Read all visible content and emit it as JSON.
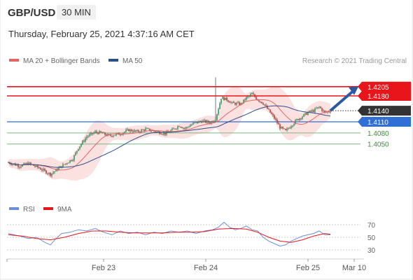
{
  "header": {
    "symbol": "GBP/USD",
    "timeframe": "30 MIN",
    "datetime": "Thursday, February 25, 2021 4:37:16 AM CET",
    "credit": "Research © 2021 Trading Central"
  },
  "colors": {
    "bull": "#2e9e5e",
    "bear": "#c0392b",
    "ma20": "#e06666",
    "band_fill": "#f9c9c9",
    "ma50": "#2c4f8c",
    "resistance": "#e8151b",
    "support": "#2f6fd6",
    "target": "#7fb77f",
    "arrow": "#2c5aa0",
    "rsi": "#6a8fd8",
    "rsi_ma": "#e8151b"
  },
  "chart_data": [
    {
      "type": "candlestick",
      "legend": [
        "MA 20 + Bollinger Bands",
        "MA 50"
      ],
      "y_range": [
        1.39,
        1.425
      ],
      "x_ticks": [
        "Feb 23",
        "Feb 24",
        "Feb 25",
        "Mar 10"
      ],
      "last_price": 1.414,
      "levels": [
        {
          "value": 1.4205,
          "label": "1.4205",
          "kind": "resistance"
        },
        {
          "value": 1.418,
          "label": "1.4180",
          "kind": "resistance"
        },
        {
          "value": 1.414,
          "label": "1.4140",
          "kind": "last"
        },
        {
          "value": 1.411,
          "label": "1.4110",
          "kind": "support"
        },
        {
          "value": 1.408,
          "label": "1.4080",
          "kind": "target"
        },
        {
          "value": 1.405,
          "label": "1.4050",
          "kind": "target"
        }
      ],
      "close_path": [
        [
          0,
          1.4
        ],
        [
          8,
          1.399
        ],
        [
          14,
          1.3998
        ],
        [
          22,
          1.3985
        ],
        [
          30,
          1.3968
        ],
        [
          38,
          1.399
        ],
        [
          46,
          1.401
        ],
        [
          50,
          1.404
        ],
        [
          56,
          1.407
        ],
        [
          62,
          1.4082
        ],
        [
          66,
          1.408
        ],
        [
          72,
          1.4072
        ],
        [
          80,
          1.4078
        ],
        [
          86,
          1.4088
        ],
        [
          92,
          1.4083
        ],
        [
          98,
          1.409
        ],
        [
          104,
          1.4085
        ],
        [
          112,
          1.4078
        ],
        [
          118,
          1.409
        ],
        [
          122,
          1.41
        ],
        [
          126,
          1.4092
        ],
        [
          132,
          1.4105
        ],
        [
          138,
          1.4112
        ],
        [
          144,
          1.4108
        ],
        [
          148,
          1.4118
        ],
        [
          152,
          1.4175
        ],
        [
          156,
          1.417
        ],
        [
          160,
          1.416
        ],
        [
          166,
          1.4158
        ],
        [
          170,
          1.4175
        ],
        [
          174,
          1.4185
        ],
        [
          178,
          1.417
        ],
        [
          182,
          1.416
        ],
        [
          186,
          1.414
        ],
        [
          190,
          1.412
        ],
        [
          194,
          1.4095
        ],
        [
          198,
          1.4085
        ],
        [
          202,
          1.41
        ],
        [
          206,
          1.4115
        ],
        [
          210,
          1.4125
        ],
        [
          214,
          1.4135
        ],
        [
          218,
          1.414
        ],
        [
          222,
          1.415
        ],
        [
          226,
          1.4135
        ],
        [
          230,
          1.414
        ]
      ]
    },
    {
      "type": "line",
      "legend": [
        "RSI",
        "9MA"
      ],
      "y_range": [
        20,
        80
      ],
      "y_ticks": [
        70,
        50,
        30
      ],
      "rsi": [
        [
          0,
          56
        ],
        [
          8,
          52
        ],
        [
          14,
          48
        ],
        [
          20,
          50
        ],
        [
          26,
          42
        ],
        [
          30,
          38
        ],
        [
          34,
          48
        ],
        [
          38,
          56
        ],
        [
          44,
          58
        ],
        [
          50,
          62
        ],
        [
          56,
          60
        ],
        [
          62,
          64
        ],
        [
          68,
          58
        ],
        [
          74,
          54
        ],
        [
          80,
          60
        ],
        [
          86,
          56
        ],
        [
          92,
          58
        ],
        [
          98,
          54
        ],
        [
          104,
          58
        ],
        [
          110,
          56
        ],
        [
          116,
          60
        ],
        [
          122,
          58
        ],
        [
          128,
          60
        ],
        [
          134,
          56
        ],
        [
          140,
          60
        ],
        [
          146,
          62
        ],
        [
          150,
          66
        ],
        [
          154,
          74
        ],
        [
          158,
          66
        ],
        [
          162,
          62
        ],
        [
          166,
          64
        ],
        [
          170,
          68
        ],
        [
          174,
          62
        ],
        [
          178,
          60
        ],
        [
          182,
          50
        ],
        [
          186,
          44
        ],
        [
          190,
          40
        ],
        [
          194,
          36
        ],
        [
          198,
          38
        ],
        [
          202,
          44
        ],
        [
          206,
          48
        ],
        [
          210,
          52
        ],
        [
          214,
          54
        ],
        [
          218,
          56
        ],
        [
          222,
          60
        ],
        [
          226,
          54
        ],
        [
          230,
          54
        ]
      ],
      "ma9": [
        [
          0,
          54
        ],
        [
          10,
          52
        ],
        [
          20,
          48
        ],
        [
          30,
          46
        ],
        [
          40,
          50
        ],
        [
          50,
          56
        ],
        [
          60,
          60
        ],
        [
          70,
          60
        ],
        [
          80,
          58
        ],
        [
          90,
          57
        ],
        [
          100,
          57
        ],
        [
          110,
          57
        ],
        [
          120,
          58
        ],
        [
          130,
          58
        ],
        [
          140,
          59
        ],
        [
          150,
          63
        ],
        [
          160,
          64
        ],
        [
          170,
          63
        ],
        [
          178,
          58
        ],
        [
          186,
          50
        ],
        [
          194,
          44
        ],
        [
          202,
          42
        ],
        [
          210,
          46
        ],
        [
          218,
          52
        ],
        [
          226,
          56
        ],
        [
          230,
          55
        ]
      ]
    }
  ]
}
